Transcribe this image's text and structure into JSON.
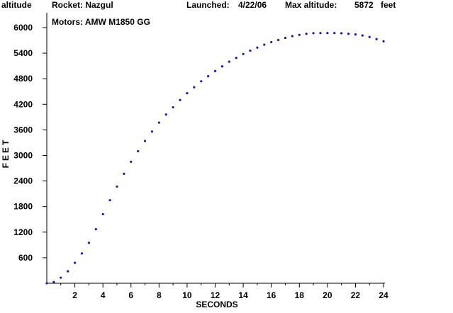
{
  "header": {
    "y_tag": "altitude",
    "rocket": "Rocket: Nazgul",
    "launched_label": "Launched:",
    "launched_date": "4/22/06",
    "max_alt_label": "Max altitude:",
    "max_alt_value": "5872",
    "max_alt_unit": "feet",
    "motors": "Motors: AMW M1850 GG"
  },
  "colors": {
    "curve": "#1a1aa8",
    "xlabel": "#7a2a2a",
    "axis": "#000000"
  },
  "chart_data": {
    "type": "scatter",
    "title": "",
    "xlabel": "SECONDS",
    "ylabel": "FEET",
    "xlim": [
      0,
      24
    ],
    "ylim": [
      0,
      6000
    ],
    "xticks": [
      2,
      4,
      6,
      8,
      10,
      12,
      14,
      16,
      18,
      20,
      22,
      24
    ],
    "yticks": [
      600,
      1200,
      1800,
      2400,
      3000,
      3600,
      4200,
      4800,
      5400,
      6000
    ],
    "grid": false,
    "series": [
      {
        "x": [
          0,
          0.5,
          1,
          1.5,
          2,
          2.5,
          3,
          3.5,
          4,
          4.5,
          5,
          5.5,
          6,
          6.5,
          7,
          7.5,
          8,
          8.5,
          9,
          9.5,
          10,
          10.5,
          11,
          11.5,
          12,
          12.5,
          13,
          13.5,
          14,
          14.5,
          15,
          15.5,
          16,
          16.5,
          17,
          17.5,
          18,
          18.5,
          19,
          19.5,
          20,
          20.5,
          21,
          21.5,
          22,
          22.5,
          23,
          23.5,
          24
        ],
        "y": [
          0,
          30,
          130,
          280,
          480,
          700,
          950,
          1270,
          1620,
          1950,
          2270,
          2570,
          2850,
          3100,
          3340,
          3560,
          3770,
          3960,
          4130,
          4300,
          4460,
          4600,
          4740,
          4860,
          4980,
          5090,
          5200,
          5290,
          5380,
          5460,
          5530,
          5600,
          5660,
          5710,
          5760,
          5800,
          5830,
          5855,
          5870,
          5872,
          5872,
          5872,
          5868,
          5855,
          5840,
          5815,
          5780,
          5730,
          5680
        ]
      }
    ]
  }
}
